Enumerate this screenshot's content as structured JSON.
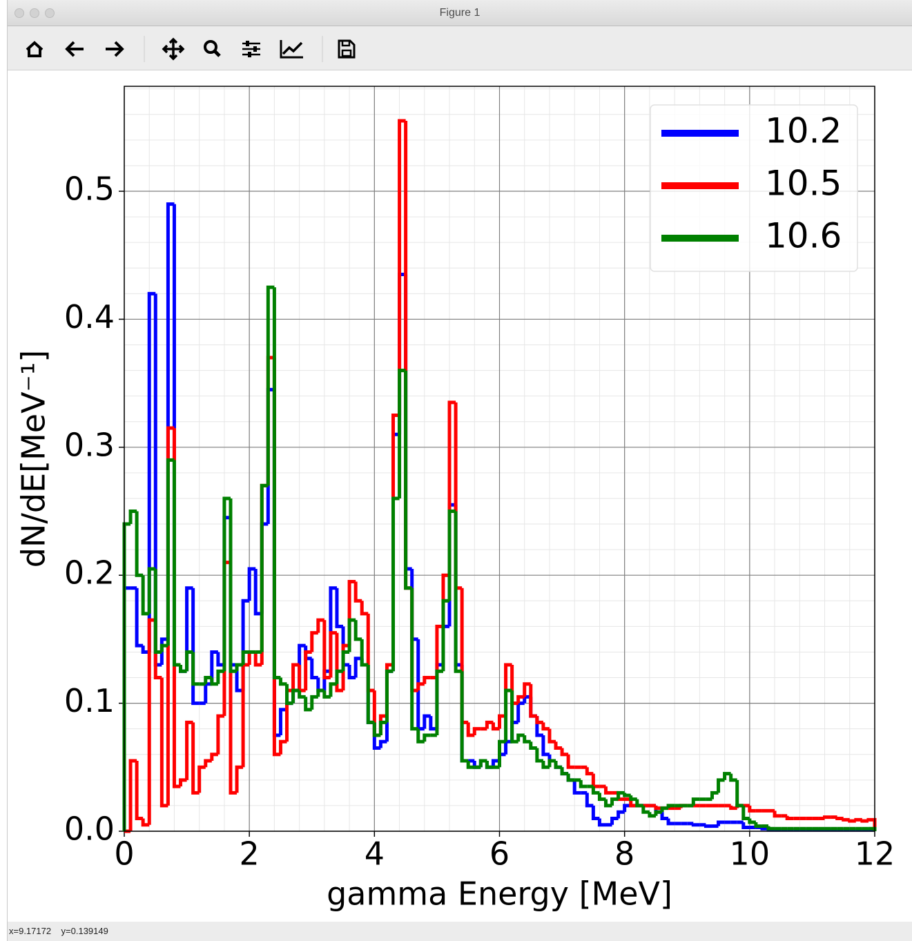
{
  "window": {
    "title": "Figure 1",
    "status": "x=9.17172    y=0.139149"
  },
  "chart_data": {
    "type": "histogram",
    "histtype": "step",
    "x_label": "gamma Energy [MeV]",
    "y_label": "dN/dE[MeV⁻¹]",
    "bins": [
      0,
      0.1,
      0.2,
      0.3,
      0.4,
      0.5,
      0.6,
      0.7,
      0.8,
      0.9,
      1,
      1.1,
      1.2,
      1.3,
      1.4,
      1.5,
      1.6,
      1.7,
      1.8,
      1.9,
      2,
      2.1,
      2.2,
      2.3,
      2.4,
      2.5,
      2.6,
      2.7,
      2.8,
      2.9,
      3,
      3.1,
      3.2,
      3.3,
      3.4,
      3.5,
      3.6,
      3.7,
      3.8,
      3.9,
      4,
      4.1,
      4.2,
      4.3,
      4.4,
      4.5,
      4.6,
      4.7,
      4.8,
      4.9,
      5,
      5.1,
      5.2,
      5.3,
      5.4,
      5.5,
      5.6,
      5.7,
      5.8,
      5.9,
      6,
      6.1,
      6.2,
      6.3,
      6.4,
      6.5,
      6.6,
      6.7,
      6.8,
      6.9,
      7,
      7.1,
      7.2,
      7.3,
      7.4,
      7.5,
      7.6,
      7.7,
      7.8,
      7.9,
      8,
      8.1,
      8.2,
      8.3,
      8.4,
      8.5,
      8.6,
      8.7,
      8.8,
      8.9,
      9,
      9.1,
      9.2,
      9.3,
      9.4,
      9.5,
      9.6,
      9.7,
      9.8,
      9.9,
      10,
      10.1,
      10.2,
      10.3,
      10.4,
      10.5,
      10.6,
      10.7,
      10.8,
      10.9,
      11,
      11.1,
      11.2,
      11.3,
      11.4,
      11.5,
      11.6,
      11.7,
      11.8,
      11.9,
      12
    ],
    "series": [
      {
        "name": "10.2",
        "color": "#0000ff",
        "values": [
          0.19,
          0.19,
          0.145,
          0.14,
          0.42,
          0.13,
          0.15,
          0.49,
          0.13,
          0.125,
          0.19,
          0.1,
          0.1,
          0.115,
          0.14,
          0.13,
          0.245,
          0.13,
          0.11,
          0.18,
          0.205,
          0.17,
          0.24,
          0.345,
          0.075,
          0.095,
          0.1,
          0.11,
          0.145,
          0.135,
          0.12,
          0.11,
          0.125,
          0.19,
          0.16,
          0.13,
          0.12,
          0.135,
          0.13,
          0.085,
          0.065,
          0.07,
          0.125,
          0.31,
          0.435,
          0.205,
          0.15,
          0.08,
          0.09,
          0.08,
          0.13,
          0.16,
          0.255,
          0.13,
          0.055,
          0.055,
          0.05,
          0.055,
          0.05,
          0.055,
          0.06,
          0.07,
          0.085,
          0.1,
          0.105,
          0.09,
          0.075,
          0.06,
          0.055,
          0.05,
          0.045,
          0.04,
          0.03,
          0.03,
          0.02,
          0.01,
          0.005,
          0.005,
          0.01,
          0.015,
          0.02,
          0.02,
          0.02,
          0.02,
          0.02,
          0.015,
          0.01,
          0.006,
          0.006,
          0.006,
          0.006,
          0.005,
          0.005,
          0.004,
          0.004,
          0.007,
          0.007,
          0.007,
          0.007,
          0.003,
          0.003,
          0.003,
          0.002,
          0.001,
          0.001,
          0.001,
          0.001,
          0.001,
          0.001,
          0.001,
          0.001,
          0.001,
          0.001,
          0.001,
          0.001,
          0.001,
          0.001,
          0.001,
          0.001,
          0.001
        ]
      },
      {
        "name": "10.5",
        "color": "#ff0000",
        "values": [
          0,
          0.055,
          0.01,
          0.005,
          0.165,
          0.12,
          0.02,
          0.315,
          0.035,
          0.04,
          0.085,
          0.03,
          0.05,
          0.055,
          0.06,
          0.09,
          0.21,
          0.03,
          0.05,
          0.13,
          0.14,
          0.13,
          0.27,
          0.37,
          0.06,
          0.07,
          0.11,
          0.13,
          0.11,
          0.14,
          0.155,
          0.165,
          0.12,
          0.155,
          0.11,
          0.145,
          0.195,
          0.18,
          0.17,
          0.11,
          0.075,
          0.09,
          0.13,
          0.325,
          0.555,
          0.19,
          0.11,
          0.115,
          0.12,
          0.12,
          0.16,
          0.2,
          0.335,
          0.19,
          0.085,
          0.075,
          0.08,
          0.08,
          0.085,
          0.08,
          0.09,
          0.13,
          0.1,
          0.105,
          0.115,
          0.09,
          0.085,
          0.08,
          0.07,
          0.065,
          0.06,
          0.05,
          0.05,
          0.05,
          0.045,
          0.035,
          0.035,
          0.03,
          0.03,
          0.025,
          0.025,
          0.02,
          0.02,
          0.02,
          0.02,
          0.018,
          0.018,
          0.018,
          0.018,
          0.02,
          0.02,
          0.02,
          0.02,
          0.02,
          0.02,
          0.02,
          0.02,
          0.018,
          0.02,
          0.02,
          0.016,
          0.016,
          0.016,
          0.016,
          0.012,
          0.012,
          0.01,
          0.01,
          0.01,
          0.01,
          0.01,
          0.01,
          0.011,
          0.011,
          0.01,
          0.009,
          0.008,
          0.009,
          0.008,
          0.009
        ]
      },
      {
        "name": "10.6",
        "color": "#008000",
        "values": [
          0.24,
          0.25,
          0.2,
          0.17,
          0.205,
          0.14,
          0.145,
          0.29,
          0.13,
          0.125,
          0.14,
          0.115,
          0.115,
          0.12,
          0.115,
          0.125,
          0.26,
          0.125,
          0.13,
          0.14,
          0.14,
          0.14,
          0.27,
          0.425,
          0.12,
          0.115,
          0.1,
          0.11,
          0.105,
          0.095,
          0.105,
          0.11,
          0.105,
          0.115,
          0.125,
          0.14,
          0.165,
          0.15,
          0.13,
          0.085,
          0.075,
          0.085,
          0.125,
          0.26,
          0.36,
          0.19,
          0.08,
          0.07,
          0.075,
          0.075,
          0.125,
          0.18,
          0.25,
          0.125,
          0.055,
          0.05,
          0.05,
          0.055,
          0.05,
          0.05,
          0.07,
          0.11,
          0.07,
          0.075,
          0.07,
          0.065,
          0.055,
          0.05,
          0.055,
          0.05,
          0.045,
          0.04,
          0.04,
          0.035,
          0.035,
          0.03,
          0.025,
          0.02,
          0.025,
          0.03,
          0.028,
          0.025,
          0.02,
          0.015,
          0.012,
          0.015,
          0.018,
          0.02,
          0.02,
          0.02,
          0.02,
          0.025,
          0.025,
          0.025,
          0.03,
          0.04,
          0.045,
          0.04,
          0.02,
          0.01,
          0.007,
          0.004,
          0.004,
          0.002,
          0.002,
          0.002,
          0.002,
          0.002,
          0.002,
          0.002,
          0.002,
          0.002,
          0.002,
          0.002,
          0.002,
          0.002,
          0.002,
          0.002,
          0.002,
          0.002
        ]
      }
    ],
    "xlim": [
      0,
      12
    ],
    "ylim": [
      0,
      0.582
    ],
    "xticks": [
      0,
      2,
      4,
      6,
      8,
      10,
      12
    ],
    "yticks": [
      {
        "value": 0,
        "label": "0.0"
      },
      0.1,
      0.2,
      0.3,
      0.4,
      0.5
    ],
    "grid": true,
    "minor_grid": true,
    "legend": "upper right"
  }
}
